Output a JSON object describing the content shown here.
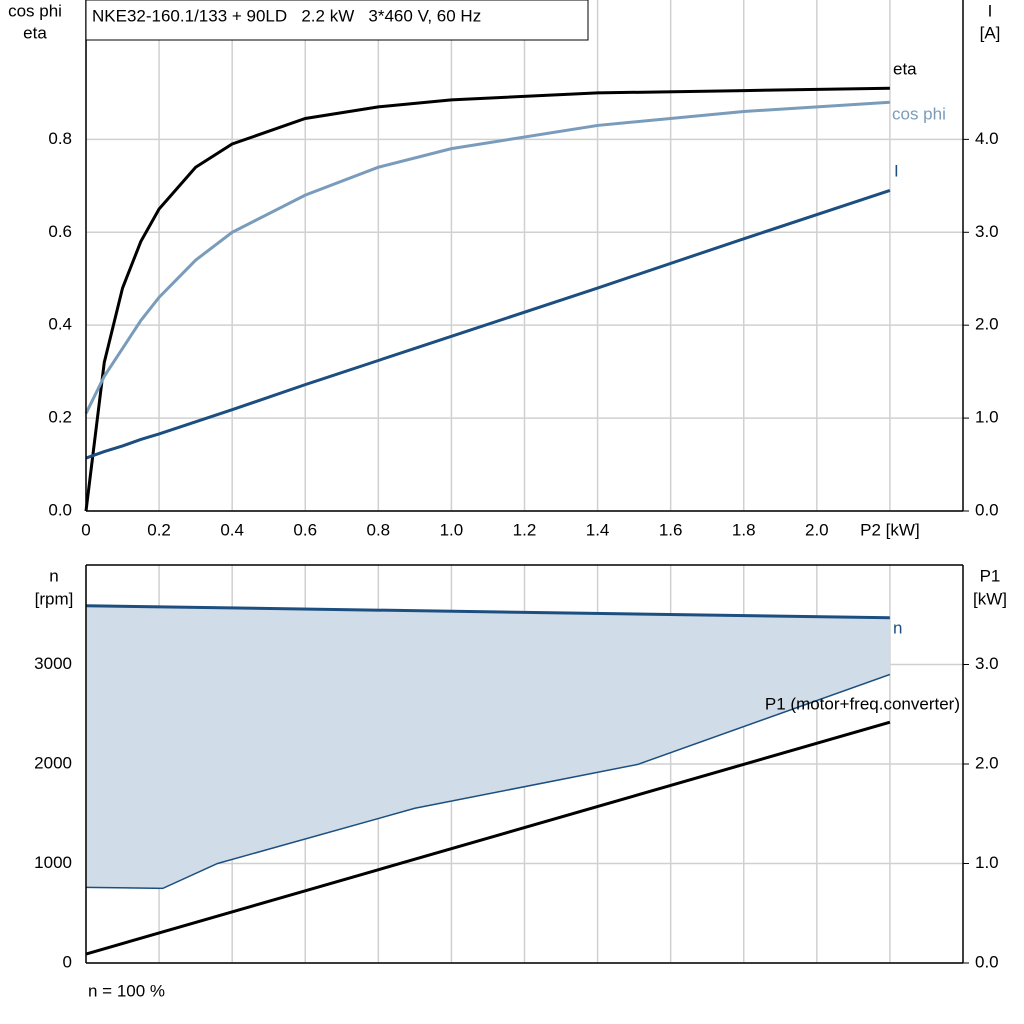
{
  "chart_data": [
    {
      "type": "line",
      "title": "NKE32-160.1/133 + 90LD   2.2 kW   3*460 V, 60 Hz",
      "ylabel": [
        "cos phi",
        "eta"
      ],
      "y2label": [
        "I",
        "[A]"
      ],
      "grid": true,
      "xlim": [
        0,
        2.4
      ],
      "xticks": [
        {
          "value": 0,
          "label": "0"
        },
        0.2,
        0.4,
        0.6,
        0.8,
        {
          "value": 1,
          "label": "1.0"
        },
        1.2,
        1.4,
        1.6,
        1.8,
        {
          "value": 2,
          "label": "2.0"
        },
        {
          "value": 2.2,
          "label": "P2 [kW]"
        }
      ],
      "ylim": [
        0,
        1.1
      ],
      "yticks": [
        {
          "value": 0,
          "label": "0.0"
        },
        0.2,
        0.4,
        0.6,
        0.8
      ],
      "y2lim": [
        0,
        5.5
      ],
      "y2ticks": [
        {
          "value": 0,
          "label": "0.0"
        },
        {
          "value": 1,
          "label": "1.0"
        },
        {
          "value": 2,
          "label": "2.0"
        },
        {
          "value": 3,
          "label": "3.0"
        },
        {
          "value": 4,
          "label": "4.0"
        }
      ],
      "x": [
        0,
        0.05,
        0.1,
        0.15,
        0.2,
        0.3,
        0.4,
        0.6,
        0.8,
        1.0,
        1.4,
        1.8,
        2.2
      ],
      "series": [
        {
          "name": "eta",
          "color": "#000000",
          "values": [
            0,
            0.32,
            0.48,
            0.58,
            0.65,
            0.74,
            0.79,
            0.845,
            0.87,
            0.885,
            0.9,
            0.905,
            0.91
          ]
        },
        {
          "name": "cos phi",
          "color": "#7a9cbb",
          "values": [
            0.21,
            0.29,
            0.35,
            0.41,
            0.46,
            0.54,
            0.6,
            0.68,
            0.74,
            0.78,
            0.83,
            0.86,
            0.88
          ]
        },
        {
          "name": "I",
          "color": "#1c4f80",
          "axis": "y2",
          "values": [
            0.57,
            0.64,
            0.7,
            0.77,
            0.83,
            0.96,
            1.09,
            1.36,
            1.62,
            1.88,
            2.4,
            2.93,
            3.45
          ]
        }
      ]
    },
    {
      "type": "line",
      "ylabel": [
        "n",
        "[rpm]"
      ],
      "y2label": [
        "P1",
        "[kW]"
      ],
      "note": "n = 100 %",
      "grid": true,
      "xlim": [
        0,
        2.4
      ],
      "xticks": [
        0,
        0.2,
        0.4,
        0.6,
        0.8,
        1,
        1.2,
        1.4,
        1.6,
        1.8,
        2,
        2.2
      ],
      "ylim": [
        0,
        4000
      ],
      "yticks": [
        0,
        1000,
        2000,
        3000
      ],
      "y2lim": [
        0,
        4
      ],
      "y2ticks": [
        {
          "value": 0,
          "label": "0.0"
        },
        {
          "value": 1,
          "label": "1.0"
        },
        {
          "value": 2,
          "label": "2.0"
        },
        {
          "value": 3,
          "label": "3.0"
        }
      ],
      "band_fill": "#d0dce8",
      "series": [
        {
          "name": "n",
          "color": "#1c4f80",
          "x": [
            0,
            2.2
          ],
          "values": [
            3590,
            3470
          ]
        },
        {
          "color": "#1c4f80",
          "x": [
            0,
            0.21,
            0.36,
            0.9,
            1.51,
            2.2
          ],
          "values": [
            760,
            750,
            1000,
            1555,
            1996,
            2900
          ]
        },
        {
          "name": "P1 (motor+freq.converter)",
          "color": "#000000",
          "axis": "y2",
          "x": [
            0,
            2.2
          ],
          "values": [
            0.09,
            2.42
          ]
        }
      ]
    }
  ]
}
